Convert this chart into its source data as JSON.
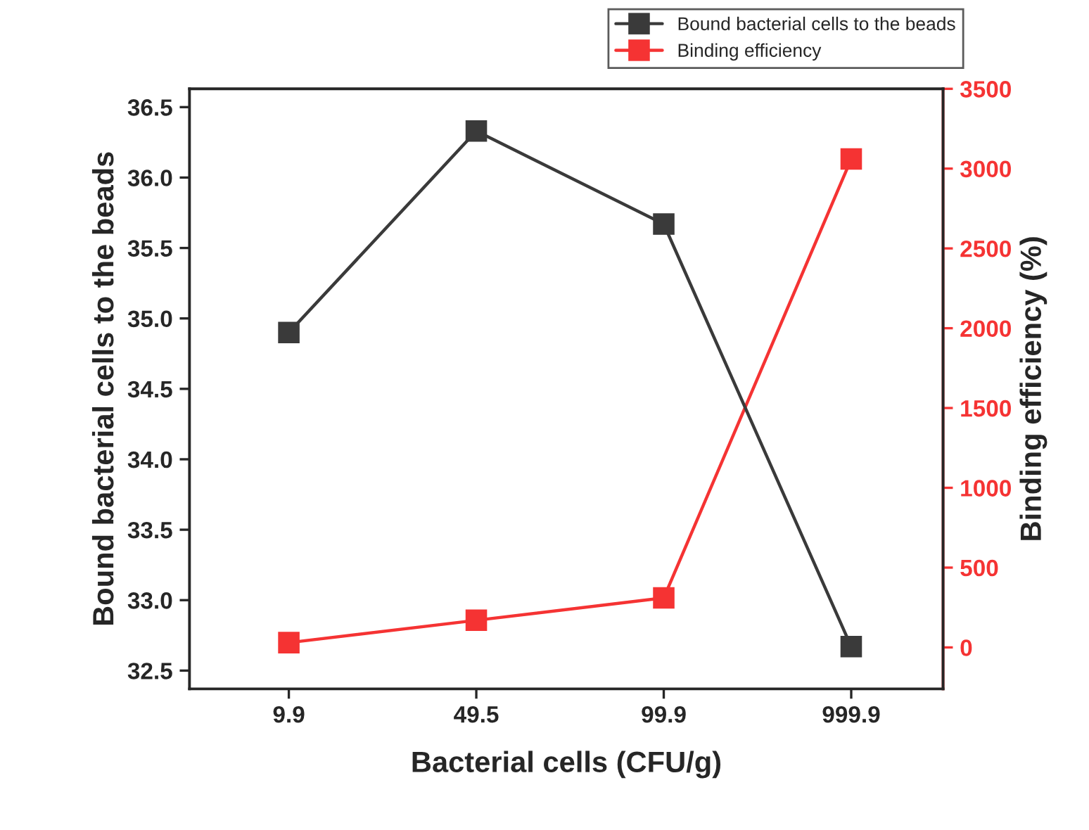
{
  "chart_data": {
    "type": "line",
    "xlabel": "Bacterial cells (CFU/g)",
    "ylabel": "Bound bacterial cells to the beads",
    "y2label": "Binding efficiency (%)",
    "categories": [
      "9.9",
      "49.5",
      "99.9",
      "999.9"
    ],
    "series": [
      {
        "name": "Bound bacterial cells to the beads",
        "color": "#3a3a3a",
        "values": [
          34.9,
          36.33,
          35.67,
          32.67
        ]
      },
      {
        "name": "Binding efficiency",
        "color": "#f53333",
        "axis": "y2",
        "values": [
          30,
          170,
          310,
          3060
        ]
      }
    ],
    "ylim": [
      32.37,
      36.63
    ],
    "yticks": [
      32.5,
      {
        "value": 33,
        "label": "33.0"
      },
      33.5,
      {
        "value": 34,
        "label": "34.0"
      },
      34.5,
      {
        "value": 35,
        "label": "35.0"
      },
      35.5,
      {
        "value": 36,
        "label": "36.0"
      },
      36.5
    ],
    "y2lim": [
      -260,
      3500
    ],
    "y2ticks": [
      0,
      500,
      1000,
      1500,
      2000,
      2500,
      3000,
      3500
    ],
    "marker": "square",
    "line_style": "solid",
    "grid": false,
    "legend": "top right"
  }
}
